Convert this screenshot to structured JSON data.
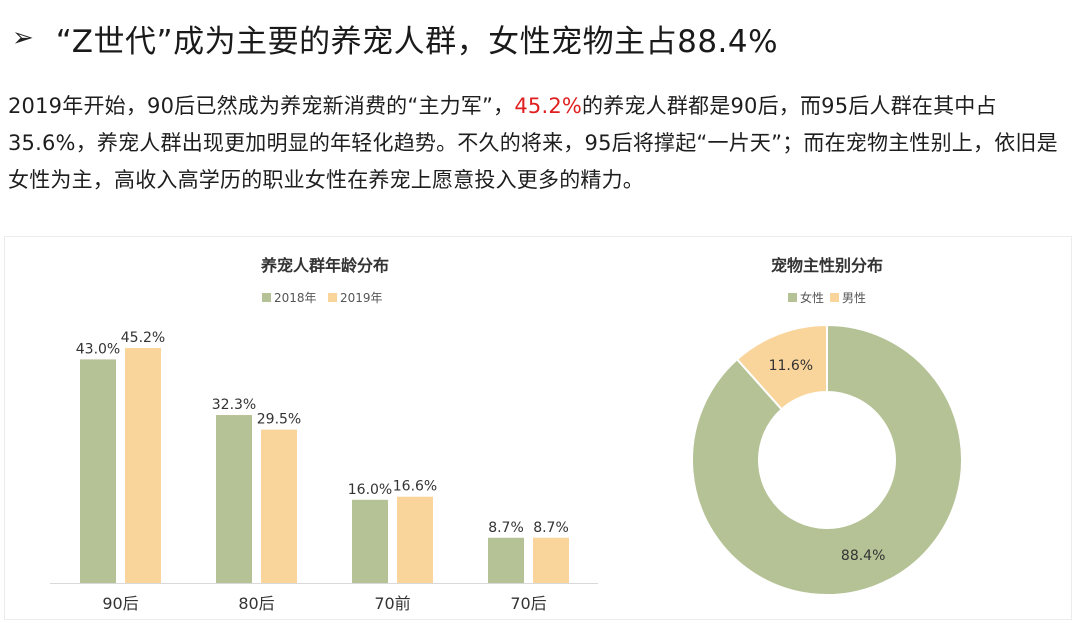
{
  "heading": {
    "arrow": "➢",
    "title": "“Z世代”成为主要的养宠人群，女性宠物主占88.4%"
  },
  "paragraph": {
    "part1": "2019年开始，90后已然成为养宠新消费的“主力军”，",
    "highlight": "45.2%",
    "part2": "的养宠人群都是90后，而95后人群在其中占35.6%，养宠人群出现更加明显的年轻化趋势。不久的将来，95后将撑起“一片天”；而在宠物主性别上，依旧是女性为主，高收入高学历的职业女性在养宠上愿意投入更多的精力。",
    "highlight_color": "#e02020"
  },
  "chart_data": [
    {
      "type": "bar",
      "title": "养宠人群年龄分布",
      "categories": [
        "90后",
        "80后",
        "70前",
        "70后"
      ],
      "series": [
        {
          "name": "2018年",
          "values": [
            43.0,
            32.3,
            16.0,
            8.7
          ],
          "labels": [
            "43.0%",
            "32.3%",
            "16.0%",
            "8.7%"
          ],
          "color": "#b5c295"
        },
        {
          "name": "2019年",
          "values": [
            45.2,
            29.5,
            16.6,
            8.7
          ],
          "labels": [
            "45.2%",
            "29.5%",
            "16.6%",
            "8.7%"
          ],
          "color": "#f9d59c"
        }
      ],
      "ylim": [
        0,
        50
      ],
      "grid": false,
      "legend": "top-center"
    },
    {
      "type": "pie",
      "title": "宠物主性别分布",
      "donut": true,
      "slices": [
        {
          "name": "女性",
          "value": 88.4,
          "label": "88.4%",
          "color": "#b5c295"
        },
        {
          "name": "男性",
          "value": 11.6,
          "label": "11.6%",
          "color": "#f9d59c"
        }
      ],
      "legend": "top-center"
    }
  ]
}
